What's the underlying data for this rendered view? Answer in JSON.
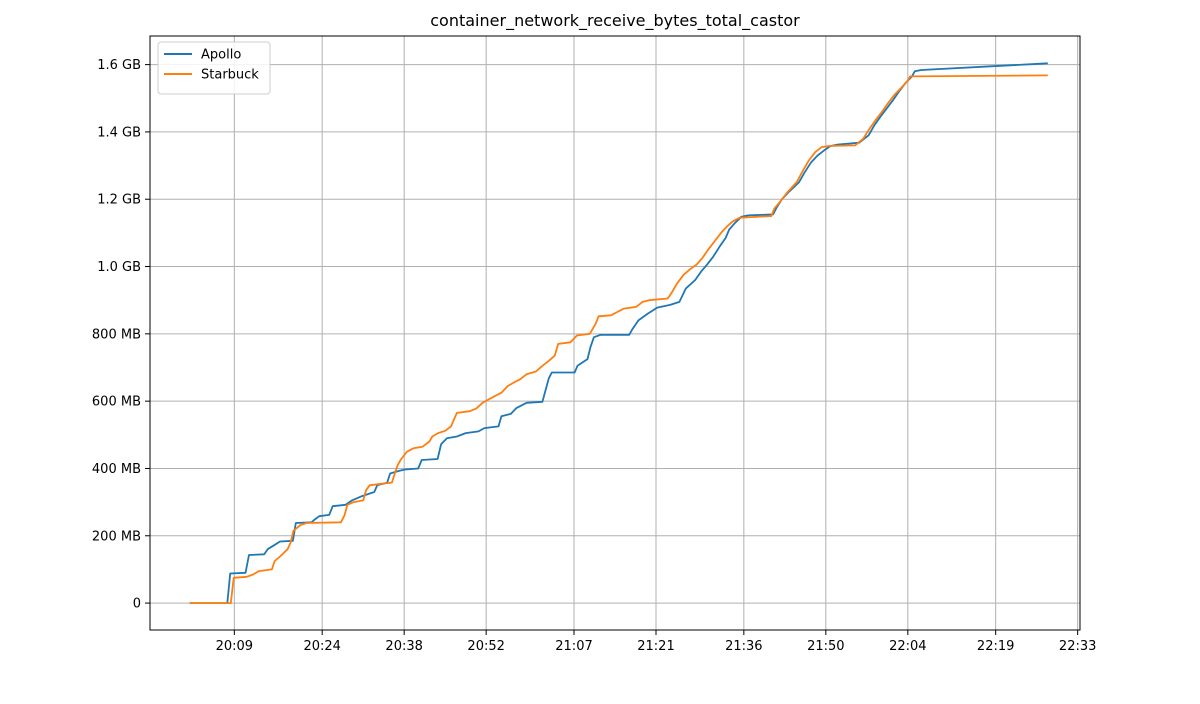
{
  "chart_data": {
    "type": "line",
    "title": "container_network_receive_bytes_total_castor",
    "xlabel": "",
    "ylabel": "",
    "x_ticks": [
      "20:09",
      "20:24",
      "20:38",
      "20:52",
      "21:07",
      "21:21",
      "21:36",
      "21:50",
      "22:04",
      "22:19",
      "22:33"
    ],
    "x_tick_values": [
      549,
      564,
      578,
      592,
      607,
      621,
      636,
      650,
      664,
      679,
      693
    ],
    "xlim": [
      534.6,
      693.4
    ],
    "y_ticks": [
      "0",
      "200 MB",
      "400 MB",
      "600 MB",
      "800 MB",
      "1.0 GB",
      "1.2 GB",
      "1.4 GB",
      "1.6 GB"
    ],
    "y_tick_values": [
      0,
      200,
      400,
      600,
      800,
      1000,
      1200,
      1400,
      1600
    ],
    "ylim": [
      -80,
      1685
    ],
    "grid": true,
    "legend_position": "top-left",
    "series": [
      {
        "name": "Apollo",
        "color": "#1f77b4",
        "points": [
          [
            541.4,
            0
          ],
          [
            547.8,
            0
          ],
          [
            548.3,
            88
          ],
          [
            550.9,
            90
          ],
          [
            551.5,
            143
          ],
          [
            554.1,
            145
          ],
          [
            554.7,
            160
          ],
          [
            555.8,
            172
          ],
          [
            556.8,
            183
          ],
          [
            559.0,
            185
          ],
          [
            559.5,
            238
          ],
          [
            562.2,
            240
          ],
          [
            562.7,
            248
          ],
          [
            563.5,
            258
          ],
          [
            565.2,
            262
          ],
          [
            565.8,
            288
          ],
          [
            568.0,
            292
          ],
          [
            569.1,
            305
          ],
          [
            570.8,
            318
          ],
          [
            572.9,
            330
          ],
          [
            573.4,
            350
          ],
          [
            575.1,
            358
          ],
          [
            575.6,
            385
          ],
          [
            577.2,
            393
          ],
          [
            578.2,
            397
          ],
          [
            580.4,
            400
          ],
          [
            581.0,
            425
          ],
          [
            583.7,
            428
          ],
          [
            584.3,
            472
          ],
          [
            585.3,
            490
          ],
          [
            587.0,
            495
          ],
          [
            588.5,
            505
          ],
          [
            590.7,
            510
          ],
          [
            591.7,
            520
          ],
          [
            594.1,
            525
          ],
          [
            594.6,
            555
          ],
          [
            596.2,
            562
          ],
          [
            597.2,
            580
          ],
          [
            598.9,
            595
          ],
          [
            601.6,
            598
          ],
          [
            602.1,
            630
          ],
          [
            602.7,
            668
          ],
          [
            603.2,
            685
          ],
          [
            607.1,
            685
          ],
          [
            607.6,
            705
          ],
          [
            609.3,
            725
          ],
          [
            609.8,
            760
          ],
          [
            610.4,
            790
          ],
          [
            611.5,
            797
          ],
          [
            616.4,
            797
          ],
          [
            616.9,
            812
          ],
          [
            618.0,
            840
          ],
          [
            619.6,
            860
          ],
          [
            621.2,
            878
          ],
          [
            623.4,
            886
          ],
          [
            625.0,
            895
          ],
          [
            626.1,
            935
          ],
          [
            627.7,
            960
          ],
          [
            628.7,
            985
          ],
          [
            629.7,
            1005
          ],
          [
            630.8,
            1030
          ],
          [
            631.9,
            1060
          ],
          [
            632.9,
            1085
          ],
          [
            633.5,
            1110
          ],
          [
            634.5,
            1130
          ],
          [
            635.6,
            1148
          ],
          [
            636.7,
            1152
          ],
          [
            641.0,
            1155
          ],
          [
            641.6,
            1175
          ],
          [
            642.5,
            1200
          ],
          [
            643.7,
            1222
          ],
          [
            645.4,
            1250
          ],
          [
            646.4,
            1280
          ],
          [
            647.5,
            1310
          ],
          [
            648.6,
            1330
          ],
          [
            649.7,
            1345
          ],
          [
            650.8,
            1358
          ],
          [
            651.9,
            1362
          ],
          [
            655.7,
            1368
          ],
          [
            657.3,
            1390
          ],
          [
            658.3,
            1420
          ],
          [
            659.3,
            1445
          ],
          [
            660.4,
            1470
          ],
          [
            661.5,
            1495
          ],
          [
            662.5,
            1520
          ],
          [
            663.6,
            1545
          ],
          [
            664.7,
            1565
          ],
          [
            665.2,
            1580
          ],
          [
            666.3,
            1584
          ],
          [
            687.9,
            1604
          ]
        ]
      },
      {
        "name": "Starbuck",
        "color": "#ff7f0e",
        "points": [
          [
            541.4,
            0
          ],
          [
            548.4,
            0
          ],
          [
            548.9,
            75
          ],
          [
            551.1,
            78
          ],
          [
            552.2,
            85
          ],
          [
            553.2,
            95
          ],
          [
            555.4,
            100
          ],
          [
            555.9,
            125
          ],
          [
            556.9,
            140
          ],
          [
            558.1,
            160
          ],
          [
            558.6,
            180
          ],
          [
            559.1,
            215
          ],
          [
            560.3,
            232
          ],
          [
            561.3,
            238
          ],
          [
            567.2,
            240
          ],
          [
            567.8,
            260
          ],
          [
            568.3,
            292
          ],
          [
            569.4,
            300
          ],
          [
            571.0,
            305
          ],
          [
            571.5,
            335
          ],
          [
            572.1,
            350
          ],
          [
            574.3,
            355
          ],
          [
            575.9,
            358
          ],
          [
            576.4,
            385
          ],
          [
            576.9,
            410
          ],
          [
            577.5,
            428
          ],
          [
            578.5,
            450
          ],
          [
            579.6,
            460
          ],
          [
            581.2,
            465
          ],
          [
            582.3,
            480
          ],
          [
            582.8,
            495
          ],
          [
            583.8,
            505
          ],
          [
            585.0,
            512
          ],
          [
            586.0,
            525
          ],
          [
            586.5,
            545
          ],
          [
            587.0,
            565
          ],
          [
            589.2,
            570
          ],
          [
            590.3,
            578
          ],
          [
            591.4,
            595
          ],
          [
            592.4,
            605
          ],
          [
            593.5,
            615
          ],
          [
            594.6,
            625
          ],
          [
            595.7,
            645
          ],
          [
            596.7,
            655
          ],
          [
            597.8,
            665
          ],
          [
            598.9,
            680
          ],
          [
            600.5,
            688
          ],
          [
            601.6,
            705
          ],
          [
            602.7,
            720
          ],
          [
            603.7,
            735
          ],
          [
            604.3,
            770
          ],
          [
            606.4,
            775
          ],
          [
            607.5,
            795
          ],
          [
            609.7,
            800
          ],
          [
            610.7,
            830
          ],
          [
            611.2,
            852
          ],
          [
            613.3,
            855
          ],
          [
            614.4,
            865
          ],
          [
            615.5,
            875
          ],
          [
            617.6,
            880
          ],
          [
            618.7,
            895
          ],
          [
            619.8,
            900
          ],
          [
            623.0,
            905
          ],
          [
            623.6,
            920
          ],
          [
            624.6,
            950
          ],
          [
            625.7,
            975
          ],
          [
            626.8,
            992
          ],
          [
            627.9,
            1005
          ],
          [
            628.9,
            1025
          ],
          [
            629.9,
            1050
          ],
          [
            631.0,
            1075
          ],
          [
            632.1,
            1100
          ],
          [
            633.2,
            1120
          ],
          [
            634.2,
            1135
          ],
          [
            635.3,
            1145
          ],
          [
            640.7,
            1150
          ],
          [
            641.2,
            1172
          ],
          [
            642.3,
            1195
          ],
          [
            643.4,
            1220
          ],
          [
            645.0,
            1250
          ],
          [
            646.1,
            1285
          ],
          [
            647.1,
            1315
          ],
          [
            648.2,
            1340
          ],
          [
            649.3,
            1355
          ],
          [
            650.5,
            1358
          ],
          [
            655.0,
            1360
          ],
          [
            656.4,
            1380
          ],
          [
            657.4,
            1408
          ],
          [
            658.5,
            1435
          ],
          [
            659.6,
            1460
          ],
          [
            660.6,
            1485
          ],
          [
            661.7,
            1510
          ],
          [
            662.8,
            1530
          ],
          [
            663.9,
            1550
          ],
          [
            664.4,
            1565
          ],
          [
            687.9,
            1568
          ]
        ]
      }
    ]
  }
}
